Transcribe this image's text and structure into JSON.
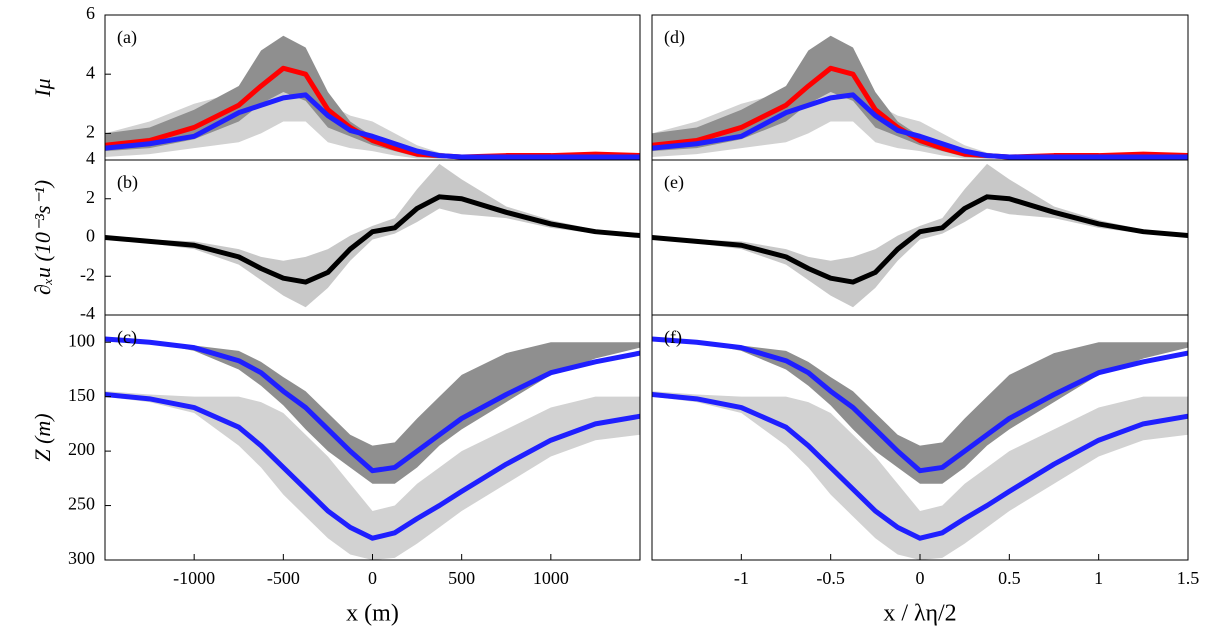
{
  "chart_data": [
    {
      "type": "line",
      "panel_label": "(a)",
      "ylabel": "Iμ",
      "x": [
        -1500,
        -1250,
        -1000,
        -750,
        -625,
        -500,
        -375,
        -250,
        -125,
        0,
        125,
        250,
        375,
        500,
        750,
        1000,
        1250,
        1500
      ],
      "xlim": [
        -1500,
        1500
      ],
      "ylim": [
        1.1,
        6
      ],
      "yticks": [
        2,
        4,
        6
      ],
      "bands": [
        {
          "color": "#d2d2d2",
          "upper": [
            2.0,
            2.4,
            3.0,
            3.4,
            3.6,
            3.8,
            3.8,
            3.0,
            2.6,
            2.4,
            2.0,
            1.6,
            1.35,
            1.25,
            1.25,
            1.25,
            1.25,
            1.25
          ],
          "lower": [
            1.2,
            1.3,
            1.5,
            1.7,
            2.0,
            2.4,
            2.4,
            1.7,
            1.5,
            1.4,
            1.25,
            1.15,
            1.15,
            1.15,
            1.15,
            1.15,
            1.15,
            1.15
          ]
        },
        {
          "color": "#8f8f8f",
          "upper": [
            2.0,
            2.2,
            2.8,
            3.6,
            4.8,
            5.3,
            4.9,
            3.4,
            2.4,
            1.9,
            1.6,
            1.4,
            1.3,
            1.25,
            1.3,
            1.3,
            1.3,
            1.3
          ],
          "lower": [
            1.4,
            1.5,
            1.8,
            2.4,
            3.0,
            3.4,
            3.1,
            2.2,
            1.9,
            1.6,
            1.4,
            1.2,
            1.15,
            1.15,
            1.15,
            1.15,
            1.15,
            1.15
          ]
        }
      ],
      "series": [
        {
          "color": "#ff0000",
          "values": [
            1.6,
            1.76,
            2.2,
            2.95,
            3.6,
            4.2,
            4.0,
            2.8,
            2.2,
            1.76,
            1.5,
            1.3,
            1.25,
            1.2,
            1.25,
            1.25,
            1.3,
            1.25
          ]
        },
        {
          "color": "#1f1fff",
          "values": [
            1.5,
            1.65,
            1.9,
            2.7,
            2.95,
            3.2,
            3.3,
            2.6,
            2.1,
            1.9,
            1.65,
            1.4,
            1.25,
            1.2,
            1.2,
            1.2,
            1.2,
            1.2
          ]
        }
      ]
    },
    {
      "type": "line",
      "panel_label": "(b)",
      "ylabel": "∂ₓu (10⁻³s⁻¹)",
      "x": [
        -1500,
        -1250,
        -1000,
        -750,
        -625,
        -500,
        -375,
        -250,
        -125,
        0,
        125,
        250,
        375,
        500,
        750,
        1000,
        1250,
        1500
      ],
      "xlim": [
        -1500,
        1500
      ],
      "ylim": [
        -4,
        4
      ],
      "yticks": [
        -4,
        -2,
        0,
        2,
        4
      ],
      "bands": [
        {
          "color": "#c8c8c8",
          "upper": [
            0.1,
            -0.1,
            -0.2,
            -0.6,
            -1.0,
            -1.2,
            -1.0,
            -0.6,
            0.1,
            0.6,
            1.0,
            2.5,
            3.8,
            3.0,
            1.6,
            0.9,
            0.4,
            0.2
          ],
          "lower": [
            -0.1,
            -0.3,
            -0.6,
            -1.4,
            -2.2,
            -3.0,
            -3.6,
            -2.6,
            -1.2,
            -0.1,
            0.2,
            0.8,
            1.5,
            1.2,
            1.0,
            0.5,
            0.2,
            0.0
          ]
        }
      ],
      "series": [
        {
          "color": "#000000",
          "values": [
            0,
            -0.2,
            -0.4,
            -1.0,
            -1.6,
            -2.1,
            -2.3,
            -1.8,
            -0.6,
            0.3,
            0.5,
            1.5,
            2.1,
            2.0,
            1.3,
            0.7,
            0.3,
            0.1
          ]
        }
      ]
    },
    {
      "type": "line",
      "panel_label": "(c)",
      "ylabel": "Z (m)",
      "xlabel": "x (m)",
      "x": [
        -1500,
        -1250,
        -1000,
        -750,
        -625,
        -500,
        -375,
        -250,
        -125,
        0,
        125,
        250,
        375,
        500,
        750,
        1000,
        1250,
        1500
      ],
      "xlim": [
        -1500,
        1500
      ],
      "ylim": [
        300,
        75
      ],
      "yticks": [
        100,
        150,
        200,
        250,
        300
      ],
      "xticks": [
        -1000,
        -500,
        0,
        500,
        1000
      ],
      "bands": [
        {
          "color": "#d2d2d2",
          "upper": [
            150,
            155,
            165,
            195,
            215,
            240,
            260,
            280,
            295,
            300,
            298,
            285,
            270,
            255,
            230,
            205,
            190,
            185
          ],
          "lower": [
            145,
            148,
            150,
            150,
            155,
            165,
            185,
            205,
            230,
            255,
            250,
            230,
            215,
            200,
            180,
            160,
            150,
            150
          ]
        },
        {
          "color": "#8f8f8f",
          "upper": [
            97,
            100,
            108,
            125,
            140,
            158,
            180,
            200,
            215,
            230,
            230,
            215,
            195,
            180,
            155,
            130,
            115,
            105
          ],
          "lower": [
            97,
            100,
            103,
            108,
            118,
            132,
            145,
            165,
            185,
            195,
            192,
            170,
            150,
            130,
            110,
            100,
            100,
            100
          ]
        }
      ],
      "series": [
        {
          "color": "#1f1fff",
          "values": [
            97,
            100,
            105,
            117,
            128,
            145,
            160,
            180,
            200,
            218,
            215,
            200,
            185,
            170,
            148,
            128,
            118,
            110
          ]
        },
        {
          "color": "#1f1fff",
          "values": [
            148,
            152,
            160,
            178,
            195,
            215,
            235,
            255,
            270,
            280,
            275,
            262,
            250,
            237,
            212,
            190,
            175,
            168
          ]
        }
      ]
    },
    {
      "type": "line",
      "panel_label": "(d)",
      "x": [
        -1.5,
        -1.25,
        -1,
        -0.75,
        -0.625,
        -0.5,
        -0.375,
        -0.25,
        -0.125,
        0,
        0.125,
        0.25,
        0.375,
        0.5,
        0.75,
        1,
        1.25,
        1.5
      ],
      "xlim": [
        -1.5,
        1.5
      ],
      "ylim": [
        1.1,
        6
      ],
      "bands": [
        {
          "color": "#d2d2d2",
          "upper": [
            2.0,
            2.4,
            3.0,
            3.4,
            3.6,
            3.8,
            3.8,
            3.0,
            2.6,
            2.4,
            2.0,
            1.6,
            1.35,
            1.25,
            1.25,
            1.25,
            1.25,
            1.25
          ],
          "lower": [
            1.2,
            1.3,
            1.5,
            1.7,
            2.0,
            2.4,
            2.4,
            1.7,
            1.5,
            1.4,
            1.25,
            1.15,
            1.15,
            1.15,
            1.15,
            1.15,
            1.15,
            1.15
          ]
        },
        {
          "color": "#8f8f8f",
          "upper": [
            2.0,
            2.2,
            2.8,
            3.6,
            4.8,
            5.3,
            4.9,
            3.4,
            2.4,
            1.9,
            1.6,
            1.4,
            1.3,
            1.25,
            1.3,
            1.3,
            1.3,
            1.3
          ],
          "lower": [
            1.4,
            1.5,
            1.8,
            2.4,
            3.0,
            3.4,
            3.1,
            2.2,
            1.9,
            1.6,
            1.4,
            1.2,
            1.15,
            1.15,
            1.15,
            1.15,
            1.15,
            1.15
          ]
        }
      ],
      "series": [
        {
          "color": "#ff0000",
          "values": [
            1.6,
            1.76,
            2.2,
            2.95,
            3.6,
            4.2,
            4.0,
            2.8,
            2.2,
            1.76,
            1.5,
            1.3,
            1.25,
            1.2,
            1.25,
            1.25,
            1.3,
            1.25
          ]
        },
        {
          "color": "#1f1fff",
          "values": [
            1.5,
            1.65,
            1.9,
            2.7,
            2.95,
            3.2,
            3.3,
            2.6,
            2.1,
            1.9,
            1.65,
            1.4,
            1.25,
            1.2,
            1.2,
            1.2,
            1.2,
            1.2
          ]
        }
      ]
    },
    {
      "type": "line",
      "panel_label": "(e)",
      "x": [
        -1.5,
        -1.25,
        -1,
        -0.75,
        -0.625,
        -0.5,
        -0.375,
        -0.25,
        -0.125,
        0,
        0.125,
        0.25,
        0.375,
        0.5,
        0.75,
        1,
        1.25,
        1.5
      ],
      "xlim": [
        -1.5,
        1.5
      ],
      "ylim": [
        -4,
        4
      ],
      "bands": [
        {
          "color": "#c8c8c8",
          "upper": [
            0.1,
            -0.1,
            -0.2,
            -0.6,
            -1.0,
            -1.2,
            -1.0,
            -0.6,
            0.1,
            0.6,
            1.0,
            2.5,
            3.8,
            3.0,
            1.6,
            0.9,
            0.4,
            0.2
          ],
          "lower": [
            -0.1,
            -0.3,
            -0.6,
            -1.4,
            -2.2,
            -3.0,
            -3.6,
            -2.6,
            -1.2,
            -0.1,
            0.2,
            0.8,
            1.5,
            1.2,
            1.0,
            0.5,
            0.2,
            0.0
          ]
        }
      ],
      "series": [
        {
          "color": "#000000",
          "values": [
            0,
            -0.2,
            -0.4,
            -1.0,
            -1.6,
            -2.1,
            -2.3,
            -1.8,
            -0.6,
            0.3,
            0.5,
            1.5,
            2.1,
            2.0,
            1.3,
            0.7,
            0.3,
            0.1
          ]
        }
      ]
    },
    {
      "type": "line",
      "panel_label": "(f)",
      "xlabel": "x / λη/2",
      "x": [
        -1.5,
        -1.25,
        -1,
        -0.75,
        -0.625,
        -0.5,
        -0.375,
        -0.25,
        -0.125,
        0,
        0.125,
        0.25,
        0.375,
        0.5,
        0.75,
        1,
        1.25,
        1.5
      ],
      "xlim": [
        -1.5,
        1.5
      ],
      "ylim": [
        300,
        75
      ],
      "xticks": [
        -1,
        -0.5,
        0,
        0.5,
        1,
        1.5
      ],
      "bands": [
        {
          "color": "#d2d2d2",
          "upper": [
            150,
            155,
            165,
            195,
            215,
            240,
            260,
            280,
            295,
            300,
            298,
            285,
            270,
            255,
            230,
            205,
            190,
            185
          ],
          "lower": [
            145,
            148,
            150,
            150,
            155,
            165,
            185,
            205,
            230,
            255,
            250,
            230,
            215,
            200,
            180,
            160,
            150,
            150
          ]
        },
        {
          "color": "#8f8f8f",
          "upper": [
            97,
            100,
            108,
            125,
            140,
            158,
            180,
            200,
            215,
            230,
            230,
            215,
            195,
            180,
            155,
            130,
            115,
            105
          ],
          "lower": [
            97,
            100,
            103,
            108,
            118,
            132,
            145,
            165,
            185,
            195,
            192,
            170,
            150,
            130,
            110,
            100,
            100,
            100
          ]
        }
      ],
      "series": [
        {
          "color": "#1f1fff",
          "values": [
            97,
            100,
            105,
            117,
            128,
            145,
            160,
            180,
            200,
            218,
            215,
            200,
            185,
            170,
            148,
            128,
            118,
            110
          ]
        },
        {
          "color": "#1f1fff",
          "values": [
            148,
            152,
            160,
            178,
            195,
            215,
            235,
            255,
            270,
            280,
            275,
            262,
            250,
            237,
            212,
            190,
            175,
            168
          ]
        }
      ]
    }
  ]
}
